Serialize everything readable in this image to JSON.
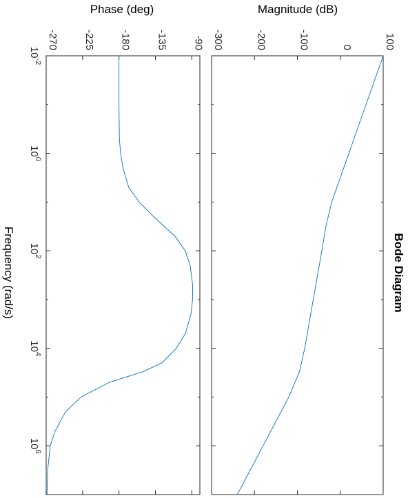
{
  "chart_data": [
    {
      "type": "line",
      "title": "Bode Diagram",
      "xlabel": "Frequency  (rad/s)",
      "ylabel": "Magnitude (dB)",
      "x_scale": "log",
      "xlim": [
        0.01,
        10000000
      ],
      "ylim": [
        -300,
        100
      ],
      "x_ticks": [
        "10^-2",
        "10^0",
        "10^2",
        "10^4",
        "10^6"
      ],
      "x_tick_base": "10",
      "x_tick_exponents": [
        "-2",
        "0",
        "2",
        "4",
        "6"
      ],
      "y_ticks": [
        "-300",
        "-200",
        "-100",
        "0",
        "100"
      ],
      "grid": false,
      "series": [
        {
          "color": "#0072BD",
          "x": [
            0.01,
            0.1,
            1,
            10,
            30,
            100,
            1000,
            10000,
            30000,
            100000,
            1000000,
            10000000
          ],
          "y": [
            100,
            60,
            20,
            -20,
            -33,
            -43,
            -63,
            -83,
            -95,
            -120,
            -180,
            -240
          ]
        }
      ]
    },
    {
      "type": "line",
      "xlabel": "Frequency  (rad/s)",
      "ylabel": "Phase (deg)",
      "x_scale": "log",
      "xlim": [
        0.01,
        10000000
      ],
      "ylim": [
        -270,
        -80
      ],
      "x_ticks": [
        "10^-2",
        "10^0",
        "10^2",
        "10^4",
        "10^6"
      ],
      "y_ticks": [
        "-270",
        "-225",
        "-180",
        "-135",
        "-90"
      ],
      "grid": false,
      "series": [
        {
          "color": "#0072BD",
          "x": [
            0.01,
            0.1,
            0.5,
            1,
            2,
            5,
            10,
            20,
            50,
            100,
            200,
            500,
            1000,
            2000,
            5000,
            10000,
            20000,
            30000,
            50000,
            100000,
            200000,
            500000,
            1000000,
            3000000,
            10000000
          ],
          "y": [
            -180,
            -180,
            -179.5,
            -178,
            -175,
            -168,
            -155,
            -137,
            -111,
            -98,
            -92,
            -89,
            -89,
            -91,
            -98,
            -109,
            -127,
            -150,
            -192,
            -227,
            -246,
            -259,
            -265,
            -268,
            -269
          ]
        }
      ]
    }
  ]
}
